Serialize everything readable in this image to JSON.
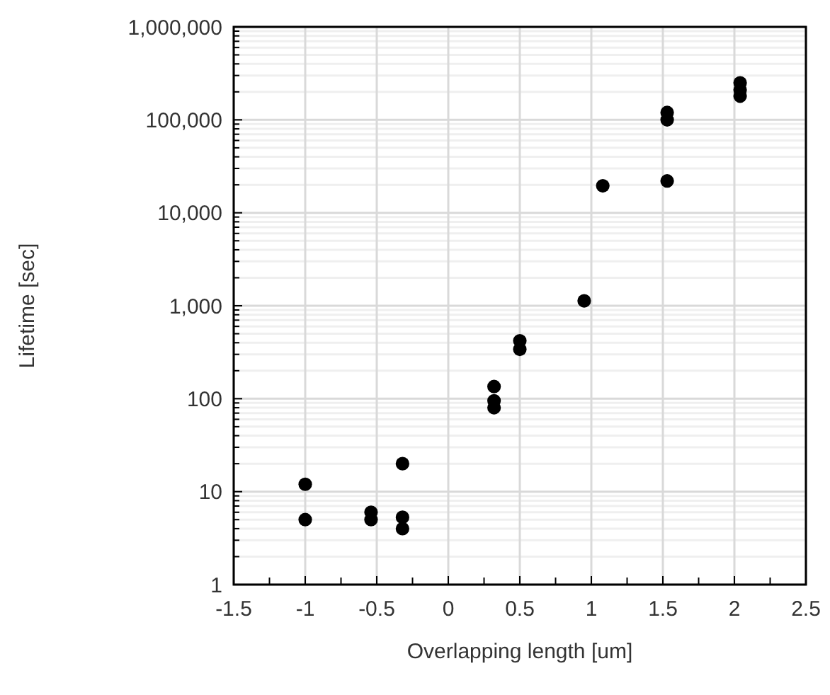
{
  "chart_data": {
    "type": "scatter",
    "xlabel": "Overlapping length [um]",
    "ylabel": "Lifetime [sec]",
    "x": [
      -1,
      -1,
      -0.54,
      -0.54,
      -0.32,
      -0.32,
      -0.32,
      0.32,
      0.32,
      0.32,
      0.5,
      0.5,
      0.95,
      1.08,
      1.53,
      1.53,
      1.53,
      2.04,
      2.04,
      2.04
    ],
    "series": [
      {
        "color": "#000000",
        "values": [
          12,
          5,
          6,
          5,
          20,
          5.3,
          4,
          135,
          95,
          80,
          420,
          340,
          1130,
          19500,
          120000,
          100000,
          22000,
          250000,
          210000,
          180000
        ]
      }
    ],
    "log": "y",
    "grid": true,
    "marker": "circle",
    "xlim": [
      -1.5,
      2.5
    ],
    "xticks": [
      -1.5,
      -1,
      -0.5,
      0,
      0.5,
      1,
      1.5,
      2,
      2.5
    ],
    "ylim": [
      1,
      1000000
    ],
    "yticks": [
      {
        "value": 1,
        "label": "1"
      },
      {
        "value": 10,
        "label": "10"
      },
      {
        "value": 100,
        "label": "100"
      },
      {
        "value": 1000,
        "label": "1,000"
      },
      {
        "value": 10000,
        "label": "10,000"
      },
      {
        "value": 100000,
        "label": "100,000"
      },
      {
        "value": 1000000,
        "label": "1,000,000"
      }
    ]
  }
}
